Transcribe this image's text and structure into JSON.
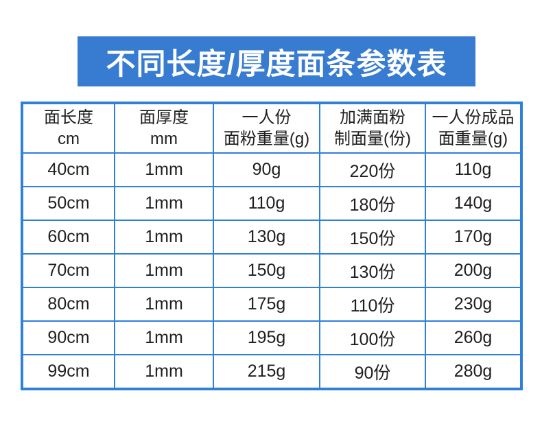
{
  "title": "不同长度/厚度面条参数表",
  "theme": {
    "banner_bg": "#377cd1",
    "border_color": "#2e80d9",
    "text_color": "#1f1f1f",
    "page_bg": "#ffffff"
  },
  "chart_data": {
    "type": "table",
    "title": "不同长度/厚度面条参数表",
    "columns": [
      {
        "line1": "面长度",
        "line2": "cm"
      },
      {
        "line1": "面厚度",
        "line2": "mm"
      },
      {
        "line1": "一人份",
        "line2": "面粉重量(g)"
      },
      {
        "line1": "加满面粉",
        "line2": "制面量(份)"
      },
      {
        "line1": "一人份成品",
        "line2": "面重量(g)"
      }
    ],
    "rows": [
      [
        "40cm",
        "1mm",
        "90g",
        "220份",
        "110g"
      ],
      [
        "50cm",
        "1mm",
        "110g",
        "180份",
        "140g"
      ],
      [
        "60cm",
        "1mm",
        "130g",
        "150份",
        "170g"
      ],
      [
        "70cm",
        "1mm",
        "150g",
        "130份",
        "200g"
      ],
      [
        "80cm",
        "1mm",
        "175g",
        "110份",
        "230g"
      ],
      [
        "90cm",
        "1mm",
        "195g",
        "100份",
        "260g"
      ],
      [
        "99cm",
        "1mm",
        "215g",
        "90份",
        "280g"
      ]
    ]
  }
}
